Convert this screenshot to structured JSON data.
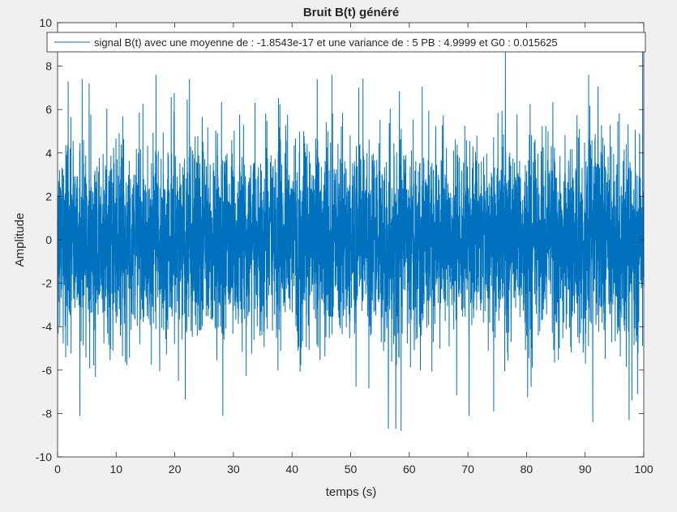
{
  "chart_data": {
    "type": "line",
    "title": "Bruit B(t) généré",
    "xlabel": "temps (s)",
    "ylabel": "Amplitude",
    "xlim": [
      0,
      100
    ],
    "ylim": [
      -10,
      10
    ],
    "xticks": [
      "0",
      "10",
      "20",
      "30",
      "40",
      "50",
      "60",
      "70",
      "80",
      "90",
      "100"
    ],
    "yticks": [
      "-10",
      "-8",
      "-6",
      "-4",
      "-2",
      "0",
      "2",
      "4",
      "6",
      "8",
      "10"
    ],
    "grid": false,
    "legend_position": "top",
    "series": [
      {
        "name": "signal B(t) avec une moyenne de : -1.8543e-17 et une variance de : 5 PB : 4.9999 et G0 : 0.015625",
        "color": "#0072bd",
        "mean": -1.8543e-17,
        "variance": 5,
        "envelope_peaks": [
          {
            "x": 1.8,
            "y": 7.3
          },
          {
            "x": 4.2,
            "y": 7.4
          },
          {
            "x": 16.8,
            "y": 7.6
          },
          {
            "x": 22.5,
            "y": 7.4
          },
          {
            "x": 44.3,
            "y": 7.4
          },
          {
            "x": 46.8,
            "y": 7.6
          },
          {
            "x": 76.4,
            "y": 8.7
          },
          {
            "x": 90.6,
            "y": 7.6
          },
          {
            "x": 99.8,
            "y": 8.7
          },
          {
            "x": 3.8,
            "y": -8.1
          },
          {
            "x": 28.2,
            "y": -8.1
          },
          {
            "x": 58.6,
            "y": -8.8
          },
          {
            "x": 70.2,
            "y": -8.1
          },
          {
            "x": 74.4,
            "y": -7.9
          },
          {
            "x": 91.3,
            "y": -8.4
          },
          {
            "x": 97.5,
            "y": -8.3
          }
        ]
      }
    ]
  }
}
